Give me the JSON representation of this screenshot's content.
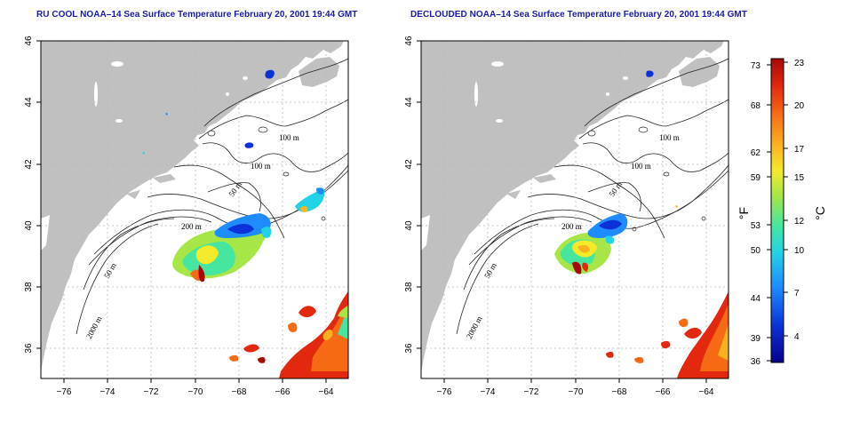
{
  "titles": {
    "left": "RU COOL NOAA–14 Sea Surface Temperature February 20, 2001 19:44 GMT",
    "right": "DECLOUDED NOAA–14 Sea Surface Temperature February 20, 2001 19:44 GMT"
  },
  "axes": {
    "longitude_ticks": [
      "−76",
      "−74",
      "−72",
      "−70",
      "−68",
      "−66",
      "−64"
    ],
    "latitude_ticks": [
      "46",
      "44",
      "42",
      "40",
      "38",
      "36"
    ],
    "lon_range": [
      -77,
      -63
    ],
    "lat_range": [
      35,
      46
    ]
  },
  "contours": {
    "labels": [
      "100 m",
      "100 m",
      "50 m",
      "200 m",
      "50 m",
      "2000 m"
    ]
  },
  "colorbar": {
    "fahrenheit_ticks": [
      "73",
      "68",
      "62",
      "59",
      "53",
      "50",
      "44",
      "39",
      "36"
    ],
    "celsius_ticks": [
      "23",
      "20",
      "17",
      "15",
      "12",
      "10",
      "7",
      "4"
    ],
    "unit_f": "°F",
    "unit_c": "°C"
  },
  "colors": {
    "land": "#c0c0c0",
    "title": "#1a1aa6",
    "grid": "#b8b8b8",
    "scale": [
      "#08008c",
      "#0a32d8",
      "#1e8cff",
      "#22d2e6",
      "#46e6a0",
      "#a6e646",
      "#f4ea2a",
      "#fbb020",
      "#f66a14",
      "#e2280e",
      "#a80808"
    ]
  }
}
